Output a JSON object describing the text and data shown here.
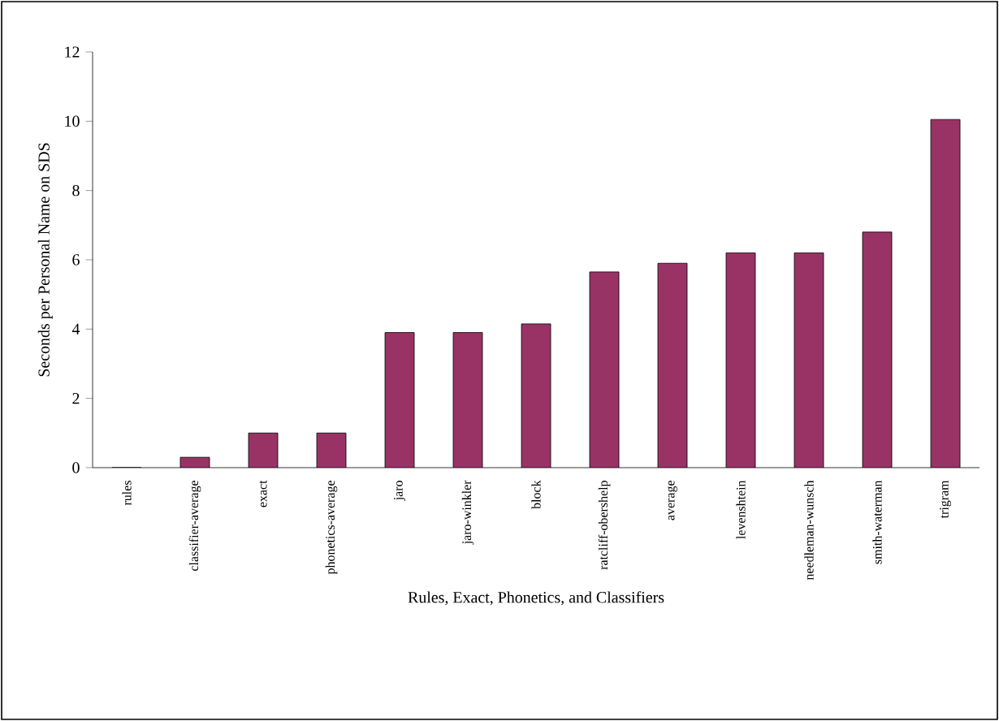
{
  "chart_data": {
    "type": "bar",
    "xlabel": "Rules, Exact, Phonetics, and Classifiers",
    "ylabel": "Seconds per Personal Name on SDS",
    "categories": [
      "rules",
      "classifier-average",
      "exact",
      "phonetics-average",
      "jaro",
      "jaro-winkler",
      "block",
      "ratcliff-obershelp",
      "average",
      "levenshtein",
      "needleman-wunsch",
      "smith-waterman",
      "trigram"
    ],
    "values": [
      0,
      0.3,
      1.0,
      1.0,
      3.9,
      3.9,
      4.15,
      5.65,
      5.9,
      6.2,
      6.2,
      6.8,
      10.05
    ],
    "color": "#993366",
    "ylim": [
      0,
      12
    ],
    "yticks": [
      0,
      2,
      4,
      6,
      8,
      10,
      12
    ],
    "grid": false
  }
}
